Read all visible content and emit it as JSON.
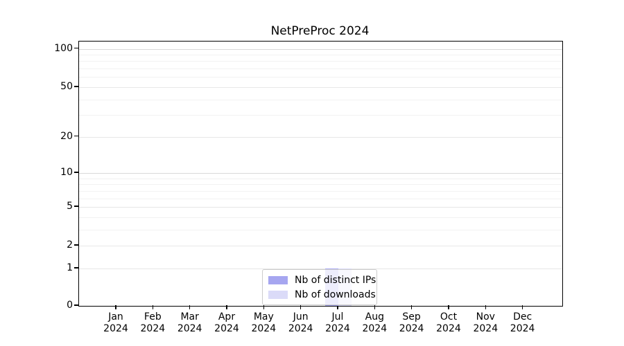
{
  "title": "NetPreProc 2024",
  "chart_data": {
    "type": "bar",
    "title": "NetPreProc 2024",
    "categories": [
      "Jan 2024",
      "Feb 2024",
      "Mar 2024",
      "Apr 2024",
      "May 2024",
      "Jun 2024",
      "Jul 2024",
      "Aug 2024",
      "Sep 2024",
      "Oct 2024",
      "Nov 2024",
      "Dec 2024"
    ],
    "series": [
      {
        "name": "Nb of distinct IPs",
        "color": "#a6a6f0",
        "values": [
          0,
          0,
          0,
          0,
          0,
          0,
          1,
          0,
          0,
          0,
          0,
          0
        ]
      },
      {
        "name": "Nb of downloads",
        "color": "#dbdbf8",
        "values": [
          0,
          0,
          0,
          0,
          0,
          0,
          1,
          0,
          0,
          0,
          0,
          0
        ]
      }
    ],
    "xlabel": "",
    "ylabel": "",
    "yscale": "log1p",
    "yticks": [
      0,
      1,
      2,
      5,
      10,
      20,
      50,
      100
    ],
    "yticks_minor": [
      3,
      4,
      6,
      7,
      8,
      9,
      30,
      40,
      60,
      70,
      80,
      90
    ],
    "ylim": [
      0,
      114
    ],
    "grid": "horizontal",
    "legend": {
      "position": "lower center",
      "entries": [
        "Nb of distinct IPs",
        "Nb of downloads"
      ]
    },
    "grid_colors": {
      "decade": "#d9d9d9",
      "major": "#e7e7e7",
      "minor": "#f2f2f2"
    }
  }
}
